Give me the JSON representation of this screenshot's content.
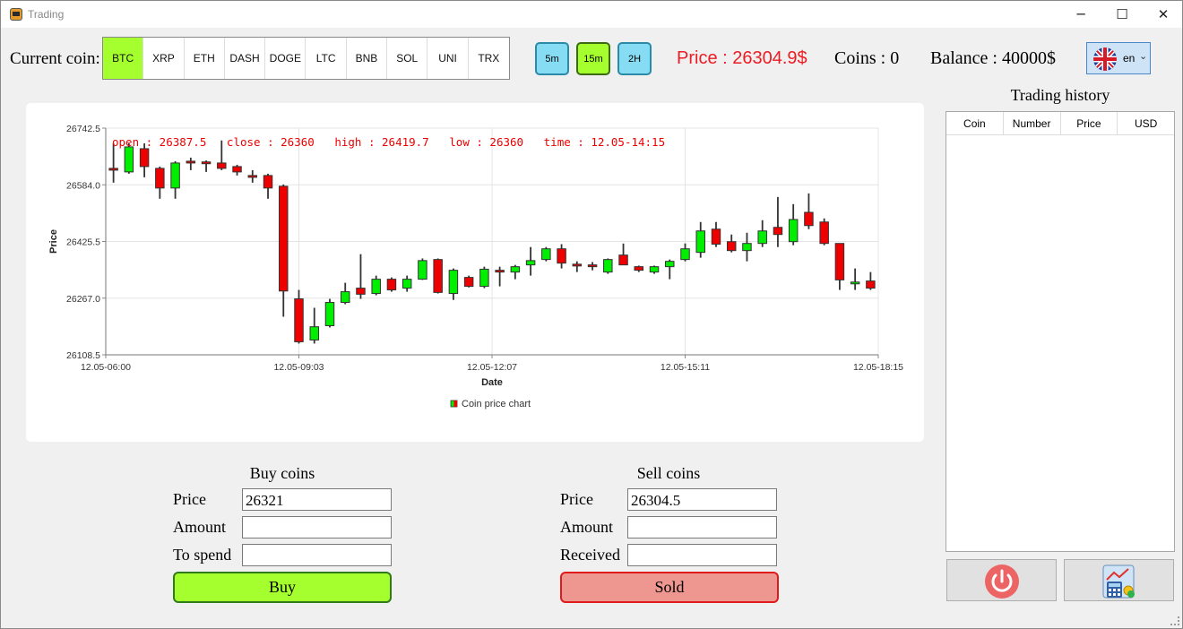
{
  "window": {
    "title": "Trading",
    "minimize": "─",
    "maximize": "☐",
    "close": "✕"
  },
  "toolbar": {
    "current_coin_label": "Current coin:",
    "coins": [
      "BTC",
      "XRP",
      "ETH",
      "DASH",
      "DOGE",
      "LTC",
      "BNB",
      "SOL",
      "UNI",
      "TRX"
    ],
    "active_coin": "BTC",
    "timeframes": [
      "5m",
      "15m",
      "2H"
    ],
    "active_timeframe": "15m",
    "price_text": "Price : 26304.9$",
    "coins_text": "Coins : 0",
    "balance_text": "Balance : 40000$",
    "language": "en"
  },
  "chart_data": {
    "type": "candlestick",
    "title": "",
    "xlabel": "Date",
    "ylabel": "Price",
    "legend": "Coin price chart",
    "legend_position": "bottom-center",
    "grid": true,
    "ylim": [
      26108.5,
      26742.5
    ],
    "y_ticks": [
      "26742.5",
      "26584.0",
      "26425.5",
      "26267.0",
      "26108.5"
    ],
    "x_ticks": [
      "12.05-06:00",
      "12.05-09:03",
      "12.05-12:07",
      "12.05-15:11",
      "12.05-18:15"
    ],
    "tooltip": "open : 26387.5   close : 26360   high : 26419.7   low : 26360   time : 12.05-14:15",
    "colors": {
      "up": "#00ee00",
      "down": "#ee0000",
      "wick": "#333333",
      "tooltip": "#ee0000"
    },
    "candles": [
      {
        "o": 26630,
        "c": 26628,
        "h": 26700,
        "l": 26590
      },
      {
        "o": 26620,
        "c": 26690,
        "h": 26700,
        "l": 26615
      },
      {
        "o": 26685,
        "c": 26635,
        "h": 26700,
        "l": 26605
      },
      {
        "o": 26630,
        "c": 26575,
        "h": 26635,
        "l": 26545
      },
      {
        "o": 26575,
        "c": 26645,
        "h": 26650,
        "l": 26545
      },
      {
        "o": 26650,
        "c": 26648,
        "h": 26660,
        "l": 26625
      },
      {
        "o": 26648,
        "c": 26646,
        "h": 26652,
        "l": 26620
      },
      {
        "o": 26645,
        "c": 26630,
        "h": 26708,
        "l": 26625
      },
      {
        "o": 26635,
        "c": 26620,
        "h": 26640,
        "l": 26610
      },
      {
        "o": 26610,
        "c": 26608,
        "h": 26625,
        "l": 26590
      },
      {
        "o": 26610,
        "c": 26575,
        "h": 26615,
        "l": 26545
      },
      {
        "o": 26580,
        "c": 26287,
        "h": 26585,
        "l": 26215
      },
      {
        "o": 26265,
        "c": 26145,
        "h": 26290,
        "l": 26140
      },
      {
        "o": 26150,
        "c": 26187,
        "h": 26240,
        "l": 26140
      },
      {
        "o": 26190,
        "c": 26255,
        "h": 26265,
        "l": 26185
      },
      {
        "o": 26255,
        "c": 26285,
        "h": 26310,
        "l": 26250
      },
      {
        "o": 26295,
        "c": 26278,
        "h": 26390,
        "l": 26265
      },
      {
        "o": 26280,
        "c": 26320,
        "h": 26330,
        "l": 26275
      },
      {
        "o": 26320,
        "c": 26290,
        "h": 26325,
        "l": 26285
      },
      {
        "o": 26295,
        "c": 26320,
        "h": 26330,
        "l": 26285
      },
      {
        "o": 26320,
        "c": 26372,
        "h": 26378,
        "l": 26318
      },
      {
        "o": 26375,
        "c": 26283,
        "h": 26378,
        "l": 26280
      },
      {
        "o": 26280,
        "c": 26345,
        "h": 26350,
        "l": 26262
      },
      {
        "o": 26325,
        "c": 26300,
        "h": 26330,
        "l": 26297
      },
      {
        "o": 26300,
        "c": 26348,
        "h": 26355,
        "l": 26295
      },
      {
        "o": 26345,
        "c": 26343,
        "h": 26355,
        "l": 26300
      },
      {
        "o": 26340,
        "c": 26355,
        "h": 26360,
        "l": 26320
      },
      {
        "o": 26360,
        "c": 26372,
        "h": 26410,
        "l": 26330
      },
      {
        "o": 26375,
        "c": 26405,
        "h": 26410,
        "l": 26370
      },
      {
        "o": 26405,
        "c": 26365,
        "h": 26418,
        "l": 26350
      },
      {
        "o": 26362,
        "c": 26358,
        "h": 26370,
        "l": 26340
      },
      {
        "o": 26360,
        "c": 26355,
        "h": 26368,
        "l": 26345
      },
      {
        "o": 26340,
        "c": 26375,
        "h": 26378,
        "l": 26335
      },
      {
        "o": 26387.5,
        "c": 26360,
        "h": 26419.7,
        "l": 26360
      },
      {
        "o": 26355,
        "c": 26345,
        "h": 26358,
        "l": 26340
      },
      {
        "o": 26340,
        "c": 26355,
        "h": 26358,
        "l": 26335
      },
      {
        "o": 26355,
        "c": 26370,
        "h": 26375,
        "l": 26320
      },
      {
        "o": 26375,
        "c": 26405,
        "h": 26420,
        "l": 26370
      },
      {
        "o": 26395,
        "c": 26455,
        "h": 26480,
        "l": 26380
      },
      {
        "o": 26460,
        "c": 26418,
        "h": 26480,
        "l": 26410
      },
      {
        "o": 26425,
        "c": 26400,
        "h": 26445,
        "l": 26395
      },
      {
        "o": 26400,
        "c": 26420,
        "h": 26450,
        "l": 26370
      },
      {
        "o": 26420,
        "c": 26455,
        "h": 26485,
        "l": 26410
      },
      {
        "o": 26465,
        "c": 26445,
        "h": 26550,
        "l": 26410
      },
      {
        "o": 26425,
        "c": 26487,
        "h": 26530,
        "l": 26415
      },
      {
        "o": 26507,
        "c": 26470,
        "h": 26560,
        "l": 26460
      },
      {
        "o": 26480,
        "c": 26420,
        "h": 26490,
        "l": 26415
      },
      {
        "o": 26420,
        "c": 26318,
        "h": 26420,
        "l": 26290
      },
      {
        "o": 26312,
        "c": 26312,
        "h": 26350,
        "l": 26290
      },
      {
        "o": 26315,
        "c": 26295,
        "h": 26340,
        "l": 26290
      }
    ]
  },
  "buy": {
    "title": "Buy coins",
    "price_label": "Price",
    "price_value": "26321",
    "amount_label": "Amount",
    "amount_value": "",
    "spend_label": "To spend",
    "spend_value": "",
    "button": "Buy"
  },
  "sell": {
    "title": "Sell coins",
    "price_label": "Price",
    "price_value": "26304.5",
    "amount_label": "Amount",
    "amount_value": "",
    "received_label": "Received",
    "received_value": "",
    "button": "Sold"
  },
  "history": {
    "title": "Trading history",
    "columns": [
      "Coin",
      "Number",
      "Price",
      "USD"
    ]
  }
}
